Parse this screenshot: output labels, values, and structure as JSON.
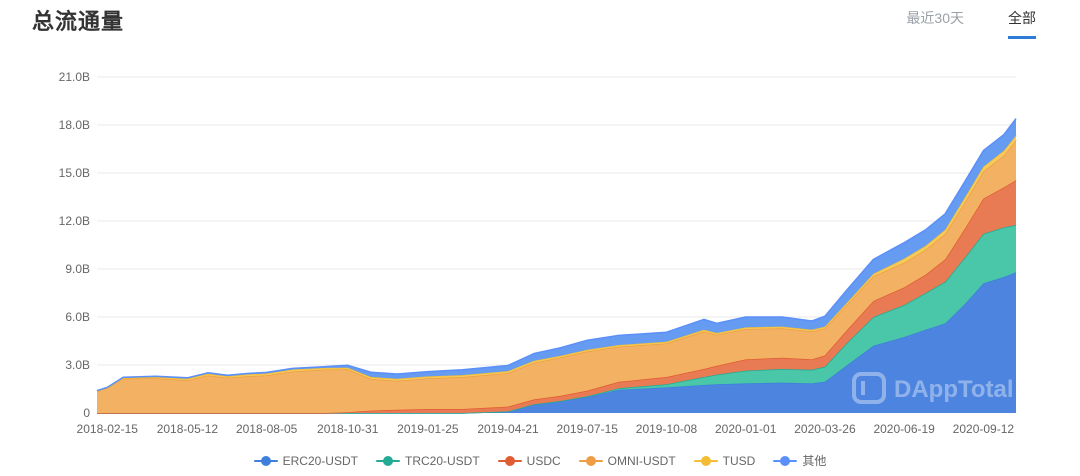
{
  "header": {
    "title": "总流通量"
  },
  "tabs": [
    {
      "label": "最近30天",
      "active": false
    },
    {
      "label": "全部",
      "active": true
    }
  ],
  "watermark": {
    "text": "DAppTotal"
  },
  "colors": {
    "accent": "#2f7cd8",
    "grid": "#e9e9e9",
    "tick_text": "#666666",
    "title_text": "#333333",
    "tab_inactive": "#9aa0a6",
    "watermark": "rgba(255,255,255,0.38)"
  },
  "chart_data": {
    "type": "area",
    "stacked": true,
    "title": "总流通量",
    "xlabel": "",
    "ylabel": "",
    "unit": "B",
    "ylim": [
      0,
      21
    ],
    "grid": "horizontal",
    "legend_position": "bottom",
    "y_ticks": [
      "0",
      "3.0B",
      "6.0B",
      "9.0B",
      "12.0B",
      "15.0B",
      "18.0B",
      "21.0B"
    ],
    "y_tick_values": [
      0,
      3,
      6,
      9,
      12,
      15,
      18,
      21
    ],
    "x_tick_labels": [
      "2018-02-15",
      "2018-05-12",
      "2018-08-05",
      "2018-10-31",
      "2019-01-25",
      "2019-04-21",
      "2019-07-15",
      "2019-10-08",
      "2020-01-01",
      "2020-03-26",
      "2020-06-19",
      "2020-09-12"
    ],
    "x": [
      "2018-02-04",
      "2018-02-15",
      "2018-03-04",
      "2018-04-08",
      "2018-05-12",
      "2018-06-03",
      "2018-06-24",
      "2018-07-15",
      "2018-08-05",
      "2018-09-02",
      "2018-10-07",
      "2018-10-31",
      "2018-11-25",
      "2018-12-23",
      "2019-01-25",
      "2019-03-03",
      "2019-04-21",
      "2019-05-19",
      "2019-06-16",
      "2019-07-15",
      "2019-08-18",
      "2019-10-08",
      "2019-11-17",
      "2019-12-01",
      "2020-01-01",
      "2020-02-09",
      "2020-03-12",
      "2020-03-26",
      "2020-04-19",
      "2020-05-17",
      "2020-06-19",
      "2020-07-12",
      "2020-08-02",
      "2020-08-23",
      "2020-09-12",
      "2020-10-04",
      "2020-10-17"
    ],
    "series": [
      {
        "name": "ERC20-USDT",
        "color": "#3e7fdc",
        "area_color": "#4d84df",
        "values": [
          0,
          0,
          0,
          0,
          0,
          0,
          0,
          0,
          0,
          0,
          0,
          0,
          0,
          0,
          0,
          0,
          0.1,
          0.55,
          0.75,
          1.0,
          1.45,
          1.6,
          1.75,
          1.8,
          1.85,
          1.9,
          1.85,
          1.95,
          3.0,
          4.2,
          4.75,
          5.2,
          5.6,
          6.8,
          8.1,
          8.5,
          8.8
        ]
      },
      {
        "name": "TRC20-USDT",
        "color": "#23ab94",
        "area_color": "#4ac6a8",
        "values": [
          0,
          0,
          0,
          0,
          0,
          0,
          0,
          0,
          0,
          0,
          0,
          0,
          0,
          0,
          0,
          0,
          0,
          0,
          0,
          0.05,
          0.1,
          0.2,
          0.5,
          0.6,
          0.8,
          0.85,
          0.85,
          0.95,
          1.4,
          1.8,
          2.0,
          2.3,
          2.6,
          2.9,
          3.1,
          3.1,
          2.95
        ]
      },
      {
        "name": "USDC",
        "color": "#e05c33",
        "area_color": "#e87b53",
        "values": [
          0,
          0,
          0,
          0,
          0,
          0,
          0,
          0,
          0,
          0,
          0,
          0.05,
          0.15,
          0.2,
          0.25,
          0.25,
          0.3,
          0.3,
          0.32,
          0.35,
          0.4,
          0.45,
          0.5,
          0.55,
          0.7,
          0.7,
          0.65,
          0.7,
          0.8,
          1.0,
          1.1,
          1.15,
          1.4,
          1.8,
          2.2,
          2.5,
          2.8
        ]
      },
      {
        "name": "OMNI-USDT",
        "color": "#ee9d44",
        "area_color": "#f3b163",
        "values": [
          1.35,
          1.55,
          2.15,
          2.18,
          2.05,
          2.35,
          2.2,
          2.3,
          2.35,
          2.6,
          2.72,
          2.68,
          1.98,
          1.82,
          1.92,
          2.0,
          2.1,
          2.3,
          2.4,
          2.45,
          2.2,
          2.1,
          2.35,
          1.95,
          1.9,
          1.85,
          1.75,
          1.7,
          1.6,
          1.55,
          1.55,
          1.55,
          1.6,
          1.65,
          1.7,
          2.0,
          2.5
        ]
      },
      {
        "name": "TUSD",
        "color": "#f2bd34",
        "area_color": "#f6cb5c",
        "values": [
          0.02,
          0.02,
          0.04,
          0.07,
          0.09,
          0.1,
          0.1,
          0.11,
          0.12,
          0.12,
          0.1,
          0.1,
          0.12,
          0.12,
          0.12,
          0.12,
          0.12,
          0.12,
          0.1,
          0.1,
          0.1,
          0.1,
          0.1,
          0.1,
          0.1,
          0.1,
          0.1,
          0.1,
          0.12,
          0.15,
          0.25,
          0.25,
          0.25,
          0.3,
          0.3,
          0.3,
          0.3
        ]
      },
      {
        "name": "其他",
        "color": "#5b8ff9",
        "area_color": "#659cf1",
        "values": [
          0.03,
          0.03,
          0.04,
          0.05,
          0.06,
          0.06,
          0.06,
          0.06,
          0.07,
          0.07,
          0.08,
          0.15,
          0.3,
          0.3,
          0.3,
          0.33,
          0.35,
          0.45,
          0.5,
          0.6,
          0.6,
          0.6,
          0.65,
          0.6,
          0.65,
          0.6,
          0.55,
          0.65,
          0.8,
          0.9,
          1.0,
          1.0,
          1.0,
          1.0,
          1.0,
          1.0,
          1.05
        ]
      }
    ]
  }
}
